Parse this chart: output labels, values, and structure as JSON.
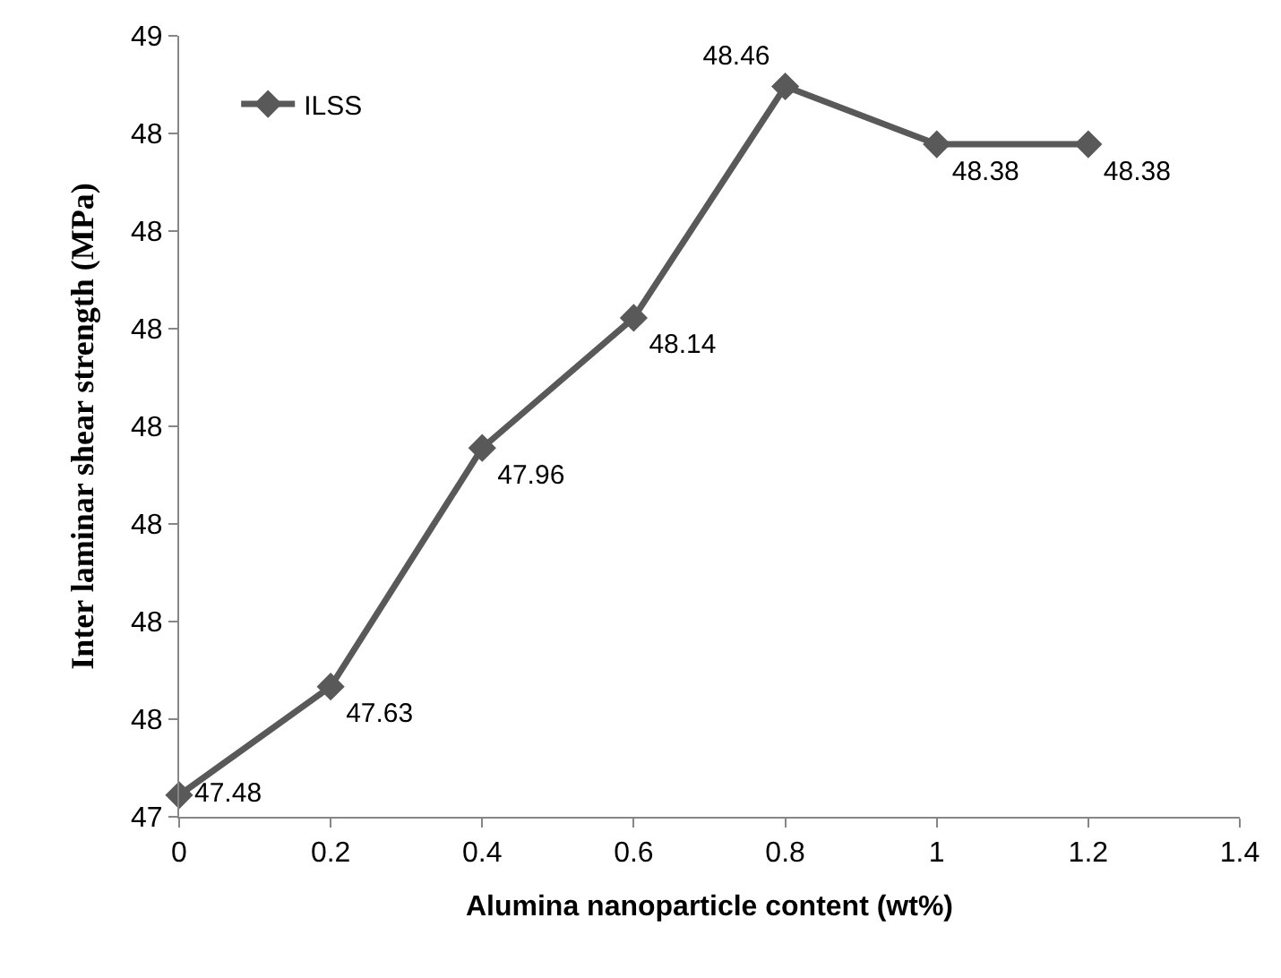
{
  "chart_data": {
    "type": "line",
    "xlabel": "Alumina nanoparticle content (wt%)",
    "ylabel": "Inter laminar shear strength (MPa)",
    "x": [
      0,
      0.2,
      0.4,
      0.6,
      0.8,
      1,
      1.2
    ],
    "series": [
      {
        "name": "ILSS",
        "color": "#595959",
        "values": [
          47.48,
          47.63,
          47.96,
          48.14,
          48.46,
          48.38,
          48.38
        ],
        "value_labels": [
          "47.48",
          "47.63",
          "47.96",
          "48.14",
          "48.46",
          "48.38",
          "48.38"
        ]
      }
    ],
    "xlim": [
      0,
      1.4
    ],
    "xticks": [
      0,
      0.2,
      0.4,
      0.6,
      0.8,
      1,
      1.2,
      1.4
    ],
    "ylim": [
      47.45,
      48.53
    ],
    "yticks": [
      {
        "value": 47.45,
        "label": "47"
      },
      {
        "value": 47.585,
        "label": "48"
      },
      {
        "value": 47.72,
        "label": "48"
      },
      {
        "value": 47.855,
        "label": "48"
      },
      {
        "value": 47.99,
        "label": "48"
      },
      {
        "value": 48.125,
        "label": "48"
      },
      {
        "value": 48.26,
        "label": "48"
      },
      {
        "value": 48.395,
        "label": "48"
      },
      {
        "value": 48.53,
        "label": "49"
      }
    ],
    "legend": "top left",
    "marker": "diamond",
    "line_style": "solid"
  }
}
